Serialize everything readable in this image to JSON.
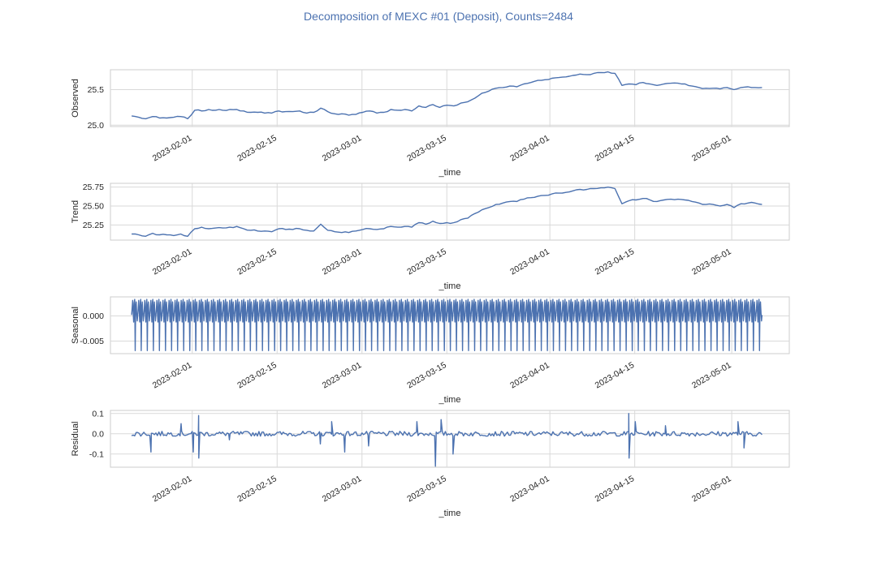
{
  "title": "Decomposition of MEXC #01 (Deposit), Counts=2484",
  "colors": {
    "title": "#4C72B0",
    "line": "#4C72B0",
    "grid": "#d9d9d9",
    "frame": "#cccccc",
    "text": "#262626"
  },
  "xlabel": "_time",
  "x_ticks": [
    "2023-02-01",
    "2023-02-15",
    "2023-03-01",
    "2023-03-15",
    "2023-04-01",
    "2023-04-15",
    "2023-05-01"
  ],
  "chart_data": [
    {
      "type": "line",
      "name": "observed",
      "ylabel": "Observed",
      "ylim": [
        24.98,
        25.78
      ],
      "yticks": [
        25.0,
        25.5
      ],
      "ytick_labels": [
        "25.0",
        "25.5"
      ],
      "grid": true,
      "x_start": "2023-01-22",
      "x_end": "2023-05-06",
      "values": [
        25.13,
        25.11,
        25.09,
        25.12,
        25.1,
        25.1,
        25.11,
        25.12,
        25.09,
        25.21,
        25.2,
        25.22,
        25.21,
        25.21,
        25.22,
        25.22,
        25.2,
        25.18,
        25.18,
        25.17,
        25.17,
        25.2,
        25.19,
        25.19,
        25.2,
        25.17,
        25.18,
        25.24,
        25.19,
        25.16,
        25.16,
        25.14,
        25.15,
        25.18,
        25.2,
        25.17,
        25.18,
        25.22,
        25.21,
        25.22,
        25.2,
        25.27,
        25.25,
        25.29,
        25.25,
        25.28,
        25.27,
        25.31,
        25.33,
        25.38,
        25.45,
        25.48,
        25.52,
        25.53,
        25.55,
        25.54,
        25.58,
        25.6,
        25.63,
        25.64,
        25.66,
        25.67,
        25.68,
        25.7,
        25.72,
        25.71,
        25.73,
        25.74,
        25.75,
        25.73,
        25.56,
        25.58,
        25.57,
        25.6,
        25.58,
        25.56,
        25.58,
        25.59,
        25.59,
        25.58,
        25.55,
        25.53,
        25.52,
        25.52,
        25.51,
        25.53,
        25.5,
        25.53,
        25.54,
        25.53,
        25.53
      ],
      "mean": 25.38
    },
    {
      "type": "line",
      "name": "trend",
      "ylabel": "Trend",
      "ylim": [
        25.05,
        25.8
      ],
      "yticks": [
        25.25,
        25.5,
        25.75
      ],
      "ytick_labels": [
        "25.25",
        "25.50",
        "25.75"
      ],
      "grid": true,
      "x_start": "2023-01-22",
      "x_end": "2023-05-06",
      "values": [
        25.13,
        25.12,
        25.1,
        25.14,
        25.12,
        25.12,
        25.11,
        25.13,
        25.1,
        25.2,
        25.22,
        25.2,
        25.21,
        25.21,
        25.22,
        25.23,
        25.2,
        25.18,
        25.17,
        25.17,
        25.16,
        25.2,
        25.19,
        25.19,
        25.2,
        25.18,
        25.17,
        25.26,
        25.18,
        25.16,
        25.15,
        25.15,
        25.17,
        25.19,
        25.2,
        25.19,
        25.2,
        25.23,
        25.22,
        25.23,
        25.22,
        25.28,
        25.26,
        25.3,
        25.27,
        25.28,
        25.28,
        25.32,
        25.34,
        25.4,
        25.45,
        25.48,
        25.52,
        25.54,
        25.56,
        25.56,
        25.59,
        25.61,
        25.63,
        25.64,
        25.66,
        25.67,
        25.68,
        25.7,
        25.72,
        25.72,
        25.73,
        25.74,
        25.75,
        25.73,
        25.53,
        25.57,
        25.58,
        25.6,
        25.58,
        25.56,
        25.58,
        25.59,
        25.59,
        25.58,
        25.56,
        25.54,
        25.52,
        25.52,
        25.5,
        25.52,
        25.48,
        25.53,
        25.54,
        25.54,
        25.52
      ],
      "mean": 25.38
    },
    {
      "type": "line",
      "name": "seasonal",
      "ylabel": "Seasonal",
      "ylim": [
        -0.0075,
        0.0038
      ],
      "yticks": [
        0.0,
        -0.005
      ],
      "ytick_labels": [
        "0.000",
        "-0.005"
      ],
      "grid": true,
      "x_start": "2023-01-22",
      "x_end": "2023-05-06",
      "periodic": true,
      "period_days": 1,
      "cycle": [
        0.0002,
        0.0015,
        0.0031,
        0.0008,
        -0.0012,
        0.0026,
        0.0033,
        -0.0069,
        0.0019,
        0.0028,
        0.0005,
        -0.001
      ],
      "gaps": [
        [
          "2023-01-26",
          "2023-01-27"
        ],
        [
          "2023-02-03",
          "2023-02-04"
        ]
      ]
    },
    {
      "type": "line",
      "name": "residual",
      "ylabel": "Residual",
      "ylim": [
        -0.165,
        0.115
      ],
      "yticks": [
        0.1,
        0.0,
        -0.1
      ],
      "ytick_labels": [
        "0.1",
        "0.0",
        "-0.1"
      ],
      "grid": true,
      "x_start": "2023-01-22",
      "x_end": "2023-05-06",
      "noise_amplitude": 0.012,
      "spikes": [
        {
          "x": "2023-01-25",
          "y": -0.09
        },
        {
          "x": "2023-01-30",
          "y": 0.05
        },
        {
          "x": "2023-02-01",
          "y": -0.09
        },
        {
          "x": "2023-02-02",
          "y": 0.09
        },
        {
          "x": "2023-02-02",
          "y": -0.12
        },
        {
          "x": "2023-02-07",
          "y": -0.03
        },
        {
          "x": "2023-02-22",
          "y": -0.05
        },
        {
          "x": "2023-02-24",
          "y": 0.06
        },
        {
          "x": "2023-02-26",
          "y": -0.09
        },
        {
          "x": "2023-03-02",
          "y": -0.06
        },
        {
          "x": "2023-03-10",
          "y": 0.06
        },
        {
          "x": "2023-03-13",
          "y": -0.16
        },
        {
          "x": "2023-03-14",
          "y": 0.07
        },
        {
          "x": "2023-03-16",
          "y": -0.1
        },
        {
          "x": "2023-04-14",
          "y": 0.1
        },
        {
          "x": "2023-04-14",
          "y": -0.12
        },
        {
          "x": "2023-04-15",
          "y": 0.06
        },
        {
          "x": "2023-04-20",
          "y": 0.04
        },
        {
          "x": "2023-05-02",
          "y": 0.06
        },
        {
          "x": "2023-05-03",
          "y": -0.07
        }
      ]
    }
  ]
}
